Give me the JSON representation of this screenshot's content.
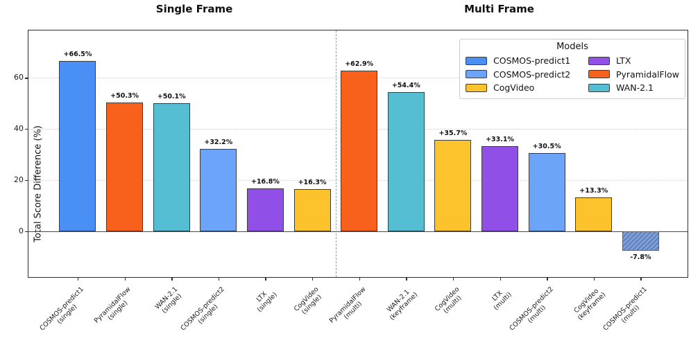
{
  "figure": {
    "group_titles": [
      {
        "label": "Single Frame"
      },
      {
        "label": "Multi Frame"
      }
    ]
  },
  "chart_data": {
    "type": "bar",
    "ylabel": "Total Score Difference (%)",
    "ylim": [
      -18,
      78.5
    ],
    "yticks": [
      0,
      20,
      40,
      60
    ],
    "gridlines": [
      20,
      40,
      60
    ],
    "grid": "horizontal-dotted",
    "legend_position": "upper-right",
    "groups": [
      {
        "title": "Single Frame",
        "first_bar": 0,
        "last_bar": 5
      },
      {
        "title": "Multi Frame",
        "first_bar": 6,
        "last_bar": 12
      }
    ],
    "separator_between": [
      5,
      6
    ],
    "bars": [
      {
        "model": "COSMOS-predict1",
        "variant": "(single)",
        "value": 66.5,
        "label": "+66.5%"
      },
      {
        "model": "PyramidalFlow",
        "variant": "(single)",
        "value": 50.3,
        "label": "+50.3%"
      },
      {
        "model": "WAN-2.1",
        "variant": "(single)",
        "value": 50.1,
        "label": "+50.1%"
      },
      {
        "model": "COSMOS-predict2",
        "variant": "(single)",
        "value": 32.2,
        "label": "+32.2%"
      },
      {
        "model": "LTX",
        "variant": "(single)",
        "value": 16.8,
        "label": "+16.8%"
      },
      {
        "model": "CogVideo",
        "variant": "(single)",
        "value": 16.3,
        "label": "+16.3%"
      },
      {
        "model": "PyramidalFlow",
        "variant": "(multi)",
        "value": 62.9,
        "label": "+62.9%"
      },
      {
        "model": "WAN-2.1",
        "variant": "(keyframe)",
        "value": 54.4,
        "label": "+54.4%"
      },
      {
        "model": "CogVideo",
        "variant": "(multi)",
        "value": 35.7,
        "label": "+35.7%"
      },
      {
        "model": "LTX",
        "variant": "(multi)",
        "value": 33.1,
        "label": "+33.1%"
      },
      {
        "model": "COSMOS-predict2",
        "variant": "(multi)",
        "value": 30.5,
        "label": "+30.5%"
      },
      {
        "model": "CogVideo",
        "variant": "(keyframe)",
        "value": 13.3,
        "label": "+13.3%"
      },
      {
        "model": "COSMOS-predict1",
        "variant": "(multi)",
        "value": -7.8,
        "label": "-7.8%",
        "hatch": true
      }
    ],
    "legend": {
      "title": "Models",
      "entries": [
        {
          "label": "COSMOS-predict1",
          "color": "#4a90f4"
        },
        {
          "label": "COSMOS-predict2",
          "color": "#6ba4f9"
        },
        {
          "label": "CogVideo",
          "color": "#fdc32d"
        },
        {
          "label": "LTX",
          "color": "#9050e8"
        },
        {
          "label": "PyramidalFlow",
          "color": "#f8611c"
        },
        {
          "label": "WAN-2.1",
          "color": "#56bed2"
        }
      ]
    }
  },
  "colors": {
    "COSMOS-predict1": "#4a90f4",
    "COSMOS-predict2": "#6ba4f9",
    "CogVideo": "#fdc32d",
    "LTX": "#9050e8",
    "PyramidalFlow": "#f8611c",
    "WAN-2.1": "#56bed2",
    "hatch_base": "#7e9ed6",
    "hatch_stripe": "#4e6caa",
    "hatch_edge": "#5f5f5f",
    "bar_edge": "#3c3c3c",
    "grid": "#cfcfcf",
    "separator": "#999999",
    "zero_line": "#4a4a4a",
    "spine": "#2b2b2b"
  }
}
